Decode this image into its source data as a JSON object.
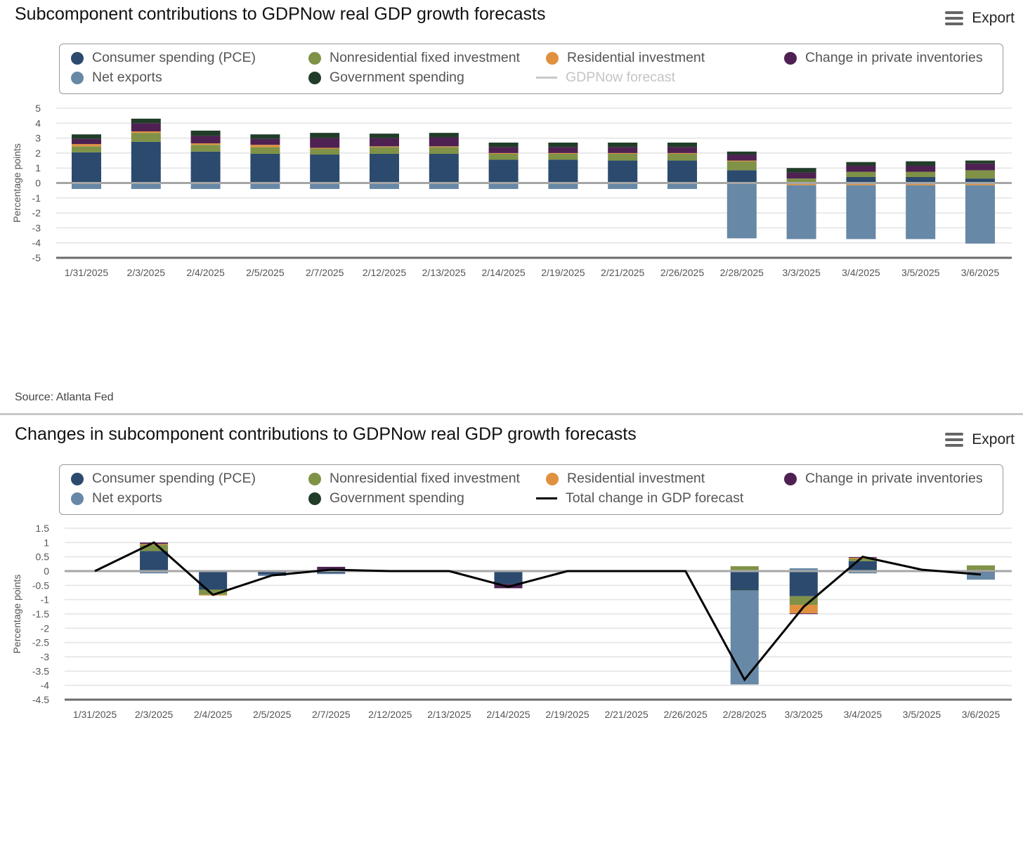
{
  "colors": {
    "pce": "#2b4a6e",
    "nonres": "#7f9247",
    "res": "#e0913f",
    "inv": "#4e2152",
    "gov": "#213d29",
    "netexp": "#6788a6",
    "total_line": "#000000",
    "gdpnow_line": "#c8c8c8"
  },
  "panel1": {
    "title": "Subcomponent contributions to GDPNow real GDP growth forecasts",
    "export_label": "Export",
    "legend": [
      {
        "key": "pce",
        "label": "Consumer spending (PCE)",
        "kind": "dot"
      },
      {
        "key": "netexp",
        "label": "Net exports",
        "kind": "dot"
      },
      {
        "key": "nonres",
        "label": "Nonresidential fixed investment",
        "kind": "dot"
      },
      {
        "key": "gov",
        "label": "Government spending",
        "kind": "dot"
      },
      {
        "key": "res",
        "label": "Residential investment",
        "kind": "dot"
      },
      {
        "key": "gdpnow_line",
        "label": "GDPNow forecast",
        "kind": "line",
        "hidden": true
      },
      {
        "key": "inv",
        "label": "Change in private inventories",
        "kind": "dot"
      }
    ],
    "source": "Source: Atlanta Fed"
  },
  "panel2": {
    "title": "Changes in subcomponent contributions to GDPNow real GDP growth forecasts",
    "export_label": "Export",
    "legend": [
      {
        "key": "pce",
        "label": "Consumer spending (PCE)",
        "kind": "dot"
      },
      {
        "key": "netexp",
        "label": "Net exports",
        "kind": "dot"
      },
      {
        "key": "nonres",
        "label": "Nonresidential fixed investment",
        "kind": "dot"
      },
      {
        "key": "gov",
        "label": "Government spending",
        "kind": "dot"
      },
      {
        "key": "res",
        "label": "Residential investment",
        "kind": "dot"
      },
      {
        "key": "total_line",
        "label": "Total change in GDP forecast",
        "kind": "line"
      },
      {
        "key": "inv",
        "label": "Change in private inventories",
        "kind": "dot"
      }
    ]
  },
  "chart_data": [
    {
      "type": "bar",
      "stacked": true,
      "title": "Subcomponent contributions to GDPNow real GDP growth forecasts",
      "xlabel": "",
      "ylabel": "Percentage points",
      "ylim": [
        -5,
        5
      ],
      "yticks": [
        "5",
        "4",
        "3",
        "2",
        "1",
        "0",
        "-1",
        "-2",
        "-3",
        "-4",
        "-5"
      ],
      "ytick_values": [
        5,
        4,
        3,
        2,
        1,
        0,
        -1,
        -2,
        -3,
        -4,
        -5
      ],
      "grid": true,
      "legend_position": "top",
      "categories": [
        "1/31/2025",
        "2/3/2025",
        "2/4/2025",
        "2/5/2025",
        "2/7/2025",
        "2/12/2025",
        "2/13/2025",
        "2/14/2025",
        "2/19/2025",
        "2/21/2025",
        "2/26/2025",
        "2/28/2025",
        "3/3/2025",
        "3/4/2025",
        "3/5/2025",
        "3/6/2025"
      ],
      "series": [
        {
          "key": "pce",
          "name": "Consumer spending (PCE)",
          "values": [
            2.05,
            2.75,
            2.1,
            1.95,
            1.9,
            1.95,
            1.95,
            1.55,
            1.55,
            1.5,
            1.5,
            0.85,
            0.05,
            0.4,
            0.4,
            0.3
          ]
        },
        {
          "key": "nonres",
          "name": "Nonresidential fixed investment",
          "values": [
            0.4,
            0.6,
            0.45,
            0.45,
            0.4,
            0.45,
            0.45,
            0.4,
            0.4,
            0.45,
            0.45,
            0.6,
            0.25,
            0.35,
            0.35,
            0.55
          ]
        },
        {
          "key": "res",
          "name": "Residential investment",
          "values": [
            0.15,
            0.1,
            0.1,
            0.15,
            0.05,
            0.05,
            0.05,
            0.05,
            0.05,
            0.05,
            0.05,
            0.05,
            -0.15,
            -0.15,
            -0.15,
            -0.15
          ]
        },
        {
          "key": "inv",
          "name": "Change in private inventories",
          "values": [
            0.35,
            0.55,
            0.5,
            0.4,
            0.65,
            0.55,
            0.6,
            0.4,
            0.4,
            0.4,
            0.4,
            0.4,
            0.4,
            0.4,
            0.4,
            0.45
          ]
        },
        {
          "key": "gov",
          "name": "Government spending",
          "values": [
            0.3,
            0.3,
            0.35,
            0.3,
            0.35,
            0.3,
            0.3,
            0.3,
            0.3,
            0.3,
            0.3,
            0.2,
            0.3,
            0.25,
            0.3,
            0.2
          ]
        },
        {
          "key": "netexp",
          "name": "Net exports",
          "values": [
            -0.4,
            -0.4,
            -0.4,
            -0.4,
            -0.4,
            -0.4,
            -0.4,
            -0.4,
            -0.4,
            -0.4,
            -0.4,
            -3.7,
            -3.6,
            -3.6,
            -3.6,
            -3.9
          ]
        }
      ]
    },
    {
      "type": "bar",
      "stacked": true,
      "title": "Changes in subcomponent contributions to GDPNow real GDP growth forecasts",
      "xlabel": "",
      "ylabel": "Percentage points",
      "ylim": [
        -4.5,
        1.5
      ],
      "yticks": [
        "1.5",
        "1",
        "0.5",
        "0",
        "-0.5",
        "-1",
        "-1.5",
        "-2",
        "-2.5",
        "-3",
        "-3.5",
        "-4",
        "-4.5"
      ],
      "ytick_values": [
        1.5,
        1,
        0.5,
        0,
        -0.5,
        -1,
        -1.5,
        -2,
        -2.5,
        -3,
        -3.5,
        -4,
        -4.5
      ],
      "grid": true,
      "legend_position": "top",
      "categories": [
        "1/31/2025",
        "2/3/2025",
        "2/4/2025",
        "2/5/2025",
        "2/7/2025",
        "2/12/2025",
        "2/13/2025",
        "2/14/2025",
        "2/19/2025",
        "2/21/2025",
        "2/26/2025",
        "2/28/2025",
        "3/3/2025",
        "3/4/2025",
        "3/5/2025",
        "3/6/2025"
      ],
      "series": [
        {
          "key": "pce",
          "name": "Consumer spending (PCE)",
          "values": [
            0,
            0.7,
            -0.65,
            -0.12,
            -0.08,
            0,
            0,
            -0.45,
            0,
            0,
            0,
            -0.65,
            -0.88,
            0.35,
            -0.02,
            -0.05
          ]
        },
        {
          "key": "nonres",
          "name": "Nonresidential fixed investment",
          "values": [
            0,
            0.22,
            -0.18,
            0,
            0.05,
            0,
            0,
            0,
            0,
            0,
            0,
            0.17,
            -0.3,
            0.08,
            0,
            0.2
          ]
        },
        {
          "key": "res",
          "name": "Residential investment",
          "values": [
            0,
            0.03,
            -0.02,
            0,
            0,
            0,
            0,
            0,
            0,
            0,
            0,
            0,
            -0.3,
            0.04,
            0,
            0
          ]
        },
        {
          "key": "inv",
          "name": "Change in private inventories",
          "values": [
            0,
            0.05,
            0,
            0,
            0.1,
            0,
            0,
            -0.15,
            0,
            0,
            0,
            0,
            -0.02,
            0.02,
            0,
            0
          ]
        },
        {
          "key": "gov",
          "name": "Government spending",
          "values": [
            0,
            0,
            0,
            0,
            0,
            0,
            0,
            0,
            0,
            0,
            0,
            -0.02,
            0,
            0,
            0,
            0
          ]
        },
        {
          "key": "netexp",
          "name": "Net exports",
          "values": [
            0,
            -0.08,
            0,
            -0.05,
            -0.02,
            0,
            0,
            0,
            0,
            0,
            0,
            -3.3,
            0.1,
            -0.08,
            0,
            -0.25
          ]
        },
        {
          "key": "total_line",
          "name": "Total change in GDP forecast",
          "kind": "line",
          "values": [
            0,
            1.0,
            -0.83,
            -0.15,
            0.05,
            0,
            0,
            -0.55,
            0,
            0,
            0,
            -3.8,
            -1.25,
            0.5,
            0.05,
            -0.12
          ]
        }
      ]
    }
  ]
}
